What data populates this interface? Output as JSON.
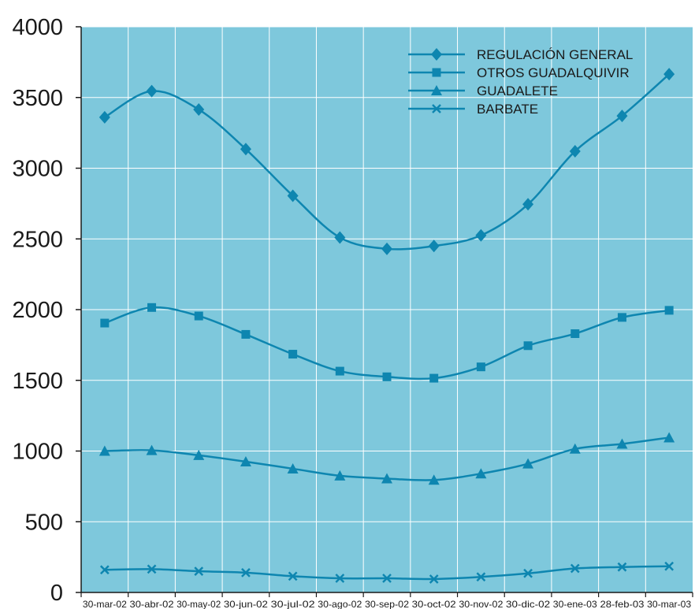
{
  "chart_data": {
    "type": "line",
    "title": "",
    "xlabel": "",
    "ylabel": "",
    "ylim": [
      0,
      4000
    ],
    "yticks": [
      "0",
      "500",
      "1000",
      "1500",
      "2000",
      "2500",
      "3000",
      "3500",
      "4000"
    ],
    "categories": [
      "30-mar-02",
      "30-abr-02",
      "30-may-02",
      "30-jun-02",
      "30-jul-02",
      "30-ago-02",
      "30-sep-02",
      "30-oct-02",
      "30-nov-02",
      "30-dic-02",
      "30-ene-03",
      "28-feb-03",
      "30-mar-03"
    ],
    "grid": true,
    "legend_position": "top-right",
    "colors": {
      "plot_background": "#7ec8dc",
      "line": "#0e86b0",
      "grid": "#ffffff",
      "axis": "#1a1a1a"
    },
    "series": [
      {
        "name": "REGULACIÓN GENERAL",
        "marker": "diamond",
        "values": [
          3360,
          3545,
          3415,
          3135,
          2805,
          2510,
          2430,
          2450,
          2525,
          2745,
          3120,
          3370,
          3665
        ]
      },
      {
        "name": "OTROS GUADALQUIVIR",
        "marker": "square",
        "values": [
          1905,
          2015,
          1955,
          1825,
          1685,
          1565,
          1525,
          1515,
          1595,
          1745,
          1830,
          1945,
          1995
        ]
      },
      {
        "name": "GUADALETE",
        "marker": "triangle",
        "values": [
          1000,
          1005,
          970,
          925,
          875,
          825,
          805,
          795,
          840,
          910,
          1015,
          1050,
          1095
        ]
      },
      {
        "name": "BARBATE",
        "marker": "x",
        "values": [
          160,
          165,
          150,
          140,
          115,
          100,
          100,
          95,
          110,
          135,
          170,
          180,
          185
        ]
      }
    ]
  }
}
